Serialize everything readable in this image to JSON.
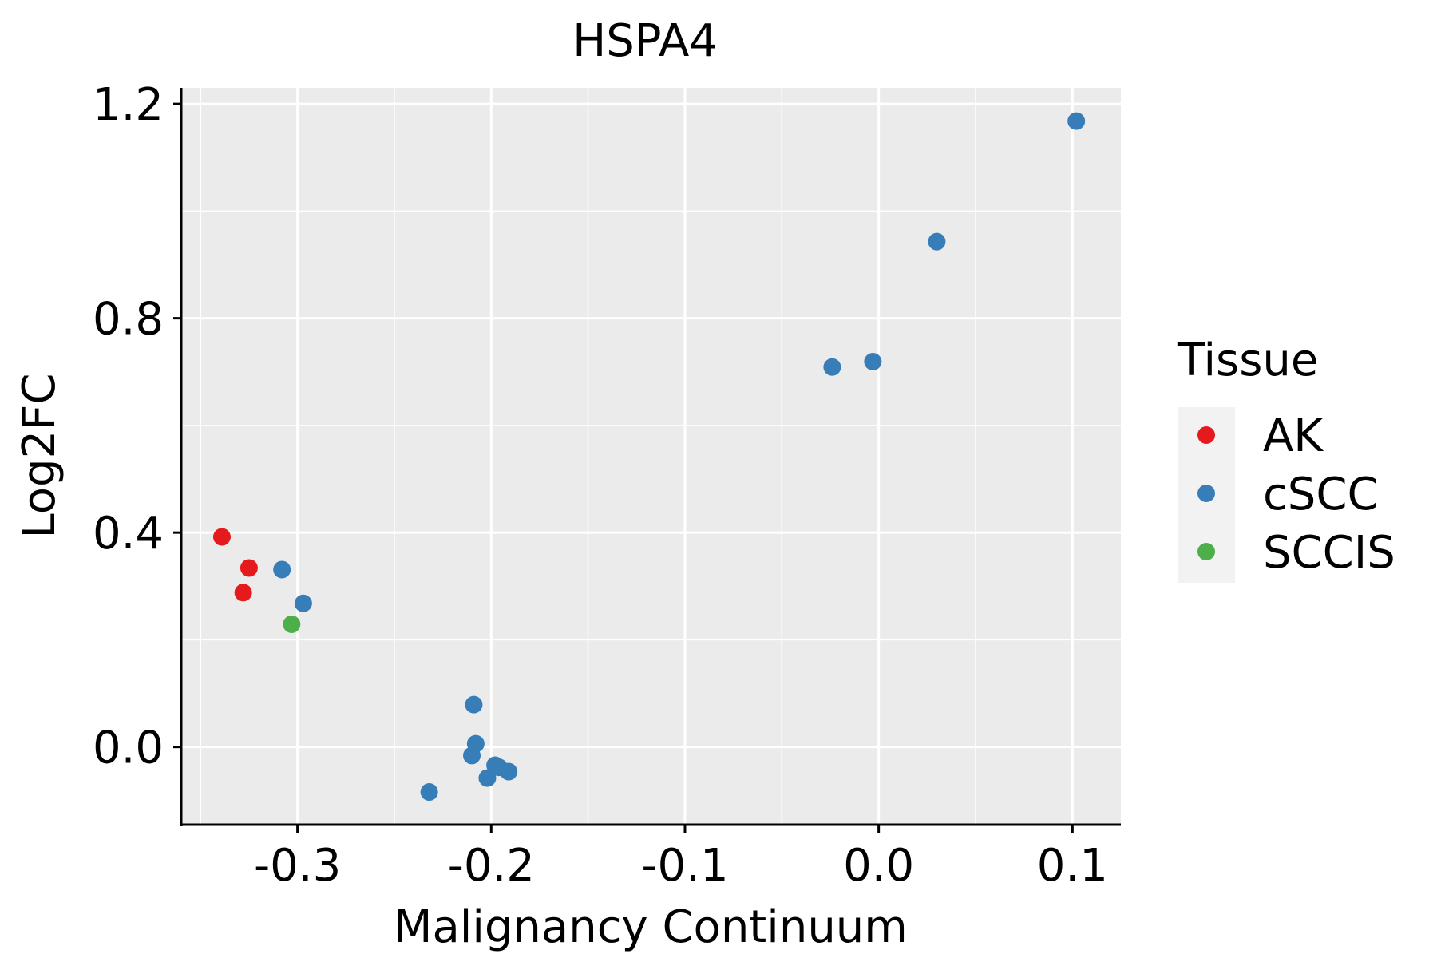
{
  "chart_data": {
    "type": "scatter",
    "title": "HSPA4",
    "xlabel": "Malignancy Continuum",
    "ylabel": "Log2FC",
    "xlim": [
      -0.36,
      0.125
    ],
    "ylim": [
      -0.145,
      1.23
    ],
    "xticks": [
      {
        "value": -0.3,
        "label": "-0.3"
      },
      {
        "value": -0.2,
        "label": "-0.2"
      },
      {
        "value": -0.1,
        "label": "-0.1"
      },
      {
        "value": 0.0,
        "label": "0.0"
      },
      {
        "value": 0.1,
        "label": "0.1"
      }
    ],
    "yticks": [
      {
        "value": 0.0,
        "label": "0.0"
      },
      {
        "value": 0.4,
        "label": "0.4"
      },
      {
        "value": 0.8,
        "label": "0.8"
      },
      {
        "value": 1.2,
        "label": "1.2"
      }
    ],
    "grid": true,
    "legend": {
      "title": "Tissue",
      "position": "right",
      "entries": [
        {
          "name": "AK",
          "color": "#E41A1C"
        },
        {
          "name": "cSCC",
          "color": "#377EB8"
        },
        {
          "name": "SCCIS",
          "color": "#4DAF4A"
        }
      ]
    },
    "series": [
      {
        "name": "AK",
        "color": "#E41A1C",
        "points": [
          {
            "x": -0.339,
            "y": 0.392
          },
          {
            "x": -0.325,
            "y": 0.334
          },
          {
            "x": -0.328,
            "y": 0.288
          }
        ]
      },
      {
        "name": "cSCC",
        "color": "#377EB8",
        "points": [
          {
            "x": -0.308,
            "y": 0.331
          },
          {
            "x": -0.297,
            "y": 0.268
          },
          {
            "x": -0.209,
            "y": 0.079
          },
          {
            "x": -0.208,
            "y": 0.006
          },
          {
            "x": -0.21,
            "y": -0.016
          },
          {
            "x": -0.198,
            "y": -0.034
          },
          {
            "x": -0.196,
            "y": -0.038
          },
          {
            "x": -0.191,
            "y": -0.046
          },
          {
            "x": -0.202,
            "y": -0.058
          },
          {
            "x": -0.232,
            "y": -0.084
          },
          {
            "x": -0.024,
            "y": 0.709
          },
          {
            "x": -0.003,
            "y": 0.719
          },
          {
            "x": 0.03,
            "y": 0.943
          },
          {
            "x": 0.102,
            "y": 1.168
          }
        ]
      },
      {
        "name": "SCCIS",
        "color": "#4DAF4A",
        "points": [
          {
            "x": -0.303,
            "y": 0.229
          }
        ]
      }
    ]
  }
}
